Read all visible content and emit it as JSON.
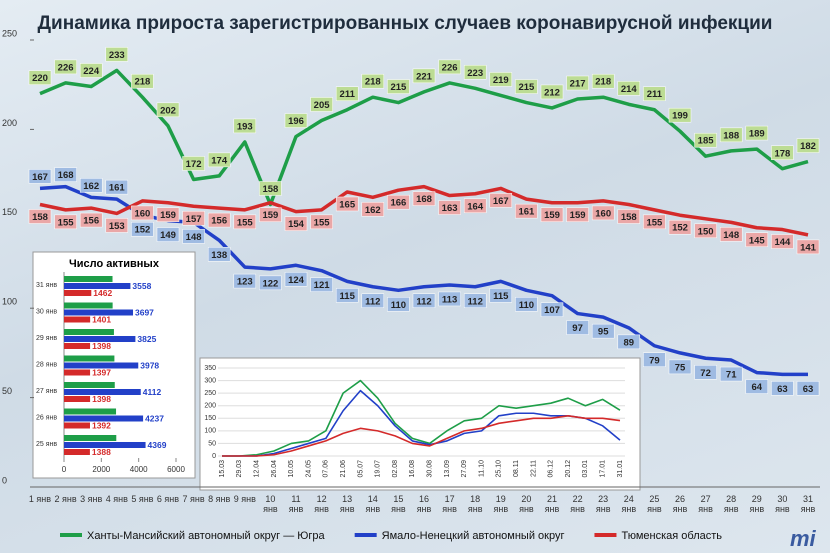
{
  "chart_data": [
    {
      "type": "line",
      "title": "Динамика прироста зарегистрированных случаев коронавирусной инфекции",
      "categories": [
        "1 янв",
        "2 янв",
        "3 янв",
        "4 янв",
        "5 янв",
        "6 янв",
        "7 янв",
        "8 янв",
        "9 янв",
        "10 янв",
        "11 янв",
        "12 янв",
        "13 янв",
        "14 янв",
        "15 янв",
        "16 янв",
        "17 янв",
        "18 янв",
        "19 янв",
        "20 янв",
        "21 янв",
        "22 янв",
        "23 янв",
        "24 янв",
        "25 янв",
        "26 янв",
        "27 янв",
        "28 янв",
        "29 янв",
        "30 янв",
        "31 янв"
      ],
      "ylim": [
        0,
        250
      ],
      "yticks": [
        0,
        50,
        100,
        150,
        200,
        250
      ],
      "data_labels": true,
      "legend": "bottom",
      "series": [
        {
          "name": "Ханты-Мансийский автономный округ — Югра",
          "color": "#1e9e48",
          "label_color": "#bcdc94",
          "values": [
            220,
            226,
            224,
            233,
            218,
            202,
            172,
            174,
            193,
            158,
            196,
            205,
            211,
            218,
            215,
            221,
            226,
            223,
            219,
            215,
            212,
            217,
            218,
            214,
            211,
            199,
            185,
            188,
            189,
            178,
            182
          ]
        },
        {
          "name": "Ямало-Ненецкий автономный округ",
          "color": "#2240c8",
          "label_color": "#9fbbe2",
          "values": [
            167,
            168,
            162,
            161,
            152,
            149,
            148,
            138,
            123,
            122,
            124,
            121,
            115,
            112,
            110,
            112,
            113,
            112,
            115,
            110,
            107,
            97,
            95,
            89,
            79,
            75,
            72,
            71,
            64,
            63,
            63
          ]
        },
        {
          "name": "Тюменская область",
          "color": "#d42a2a",
          "label_color": "#eaa7a7",
          "values": [
            158,
            155,
            156,
            153,
            160,
            159,
            157,
            156,
            155,
            159,
            154,
            155,
            165,
            162,
            166,
            168,
            163,
            164,
            167,
            161,
            159,
            159,
            160,
            158,
            155,
            152,
            150,
            148,
            145,
            144,
            141
          ]
        }
      ]
    },
    {
      "type": "hbar",
      "title": "Число активных",
      "categories": [
        "31 янв",
        "30 янв",
        "29 янв",
        "28 янв",
        "27 янв",
        "26 янв",
        "25 янв"
      ],
      "xlim": [
        0,
        6000
      ],
      "xticks": [
        0,
        2000,
        4000,
        6000
      ],
      "data_labels": true,
      "series": [
        {
          "color": "#1e9e48",
          "values": [
            2599,
            2605,
            2675,
            2700,
            2719,
            2788,
            2801
          ]
        },
        {
          "color": "#2240c8",
          "values": [
            3558,
            3697,
            3825,
            3978,
            4112,
            4237,
            4369
          ]
        },
        {
          "color": "#d42a2a",
          "values": [
            1462,
            1401,
            1398,
            1397,
            1398,
            1392,
            1388
          ]
        }
      ]
    },
    {
      "type": "line",
      "categories": [
        "15.03",
        "29.03",
        "12.04",
        "26.04",
        "10.05",
        "24.05",
        "07.06",
        "21.06",
        "05.07",
        "19.07",
        "02.08",
        "16.08",
        "30.08",
        "13.09",
        "27.09",
        "11.10",
        "25.10",
        "08.11",
        "22.11",
        "06.12",
        "20.12",
        "03.01",
        "17.01",
        "31.01"
      ],
      "ylim": [
        0,
        350
      ],
      "yticks": [
        0,
        50,
        100,
        150,
        200,
        250,
        300,
        350
      ],
      "grid": true,
      "series": [
        {
          "color": "#1e9e48",
          "values": [
            0,
            0,
            5,
            20,
            50,
            60,
            100,
            250,
            300,
            230,
            130,
            70,
            50,
            100,
            140,
            150,
            200,
            190,
            200,
            210,
            230,
            200,
            225,
            182
          ]
        },
        {
          "color": "#2240c8",
          "values": [
            0,
            0,
            0,
            10,
            30,
            50,
            70,
            180,
            260,
            200,
            120,
            60,
            45,
            60,
            90,
            100,
            160,
            170,
            170,
            160,
            160,
            150,
            120,
            63
          ]
        },
        {
          "color": "#d42a2a",
          "values": [
            0,
            0,
            0,
            5,
            20,
            40,
            60,
            90,
            110,
            100,
            80,
            50,
            40,
            70,
            100,
            110,
            130,
            140,
            150,
            150,
            160,
            150,
            150,
            141
          ]
        }
      ]
    }
  ],
  "logo": "mi"
}
